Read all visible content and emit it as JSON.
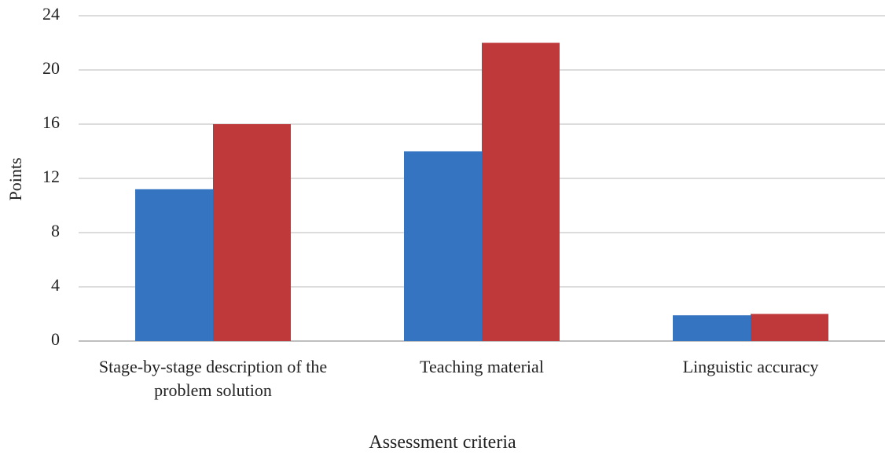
{
  "chart_data": {
    "type": "bar",
    "x_label": "Assessment criteria",
    "y_label": "Points",
    "categories": [
      "Stage-by-stage description of the problem solution",
      "Teaching material",
      "Linguistic accuracy"
    ],
    "series": [
      {
        "color": "#3574c0",
        "values": [
          11.2,
          14,
          1.9
        ]
      },
      {
        "color": "#c0393a",
        "values": [
          16,
          22,
          2
        ]
      }
    ],
    "ylim": [
      0,
      24
    ],
    "yticks": [
      0,
      4,
      8,
      12,
      16,
      20,
      24
    ],
    "grid": true
  }
}
